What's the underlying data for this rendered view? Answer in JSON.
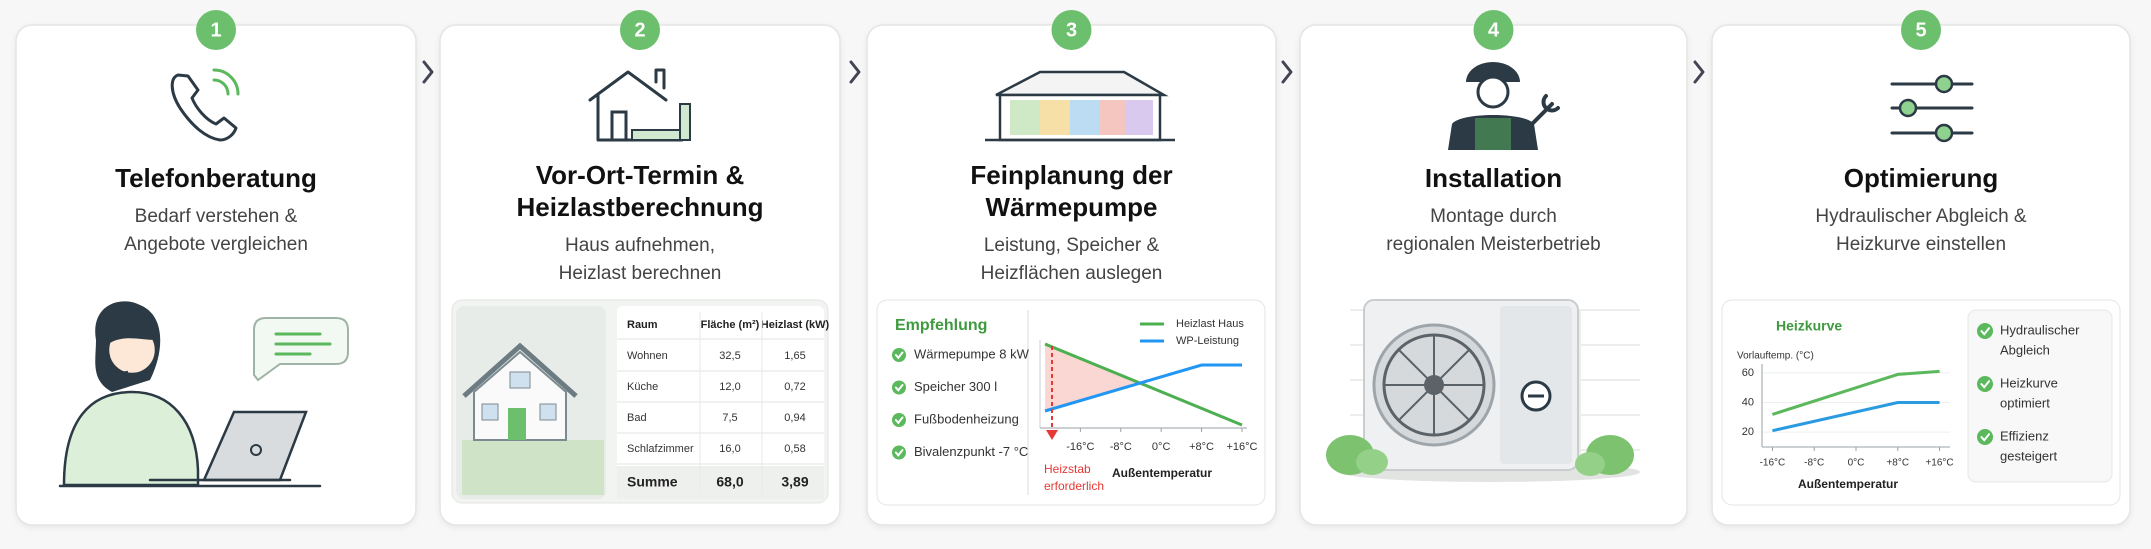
{
  "steps": [
    {
      "number": "1",
      "title": [
        "Telefonberatung"
      ],
      "subtitle": [
        "Bedarf verstehen &",
        "Angebote vergleichen"
      ]
    },
    {
      "number": "2",
      "title": [
        "Vor-Ort-Termin &",
        "Heizlastberechnung"
      ],
      "subtitle": [
        "Haus aufnehmen,",
        "Heizlast berechnen"
      ]
    },
    {
      "number": "3",
      "title": [
        "Feinplanung der",
        "Wärmepumpe"
      ],
      "subtitle": [
        "Leistung, Speicher &",
        "Heizflächen auslegen"
      ]
    },
    {
      "number": "4",
      "title": [
        "Installation"
      ],
      "subtitle": [
        "Montage durch",
        "regionalen Meisterbetrieb"
      ]
    },
    {
      "number": "5",
      "title": [
        "Optimierung"
      ],
      "subtitle": [
        "Hydraulischer Abgleich &",
        "Heizkurve einstellen"
      ]
    }
  ],
  "heat_load_table": {
    "header": [
      "Raum",
      "Fläche (m²)",
      "Heizlast (kW)"
    ],
    "rows": [
      [
        "Wohnen",
        "32,5",
        "1,65"
      ],
      [
        "Küche",
        "12,0",
        "0,72"
      ],
      [
        "Bad",
        "7,5",
        "0,94"
      ],
      [
        "Schlafzimmer",
        "16,0",
        "0,58"
      ]
    ],
    "total": [
      "Summe",
      "68,0",
      "3,89"
    ]
  },
  "planning": {
    "heading": "Empfehlung",
    "items": [
      "Wärmepumpe 8 kW",
      "Speicher 300 l",
      "Fußbodenheizung",
      "Bivalenzpunkt -7 °C"
    ],
    "chart": {
      "type": "line",
      "series": [
        {
          "name": "Heizlast Haus",
          "color": "#4caf50",
          "x": [
            -23,
            16
          ],
          "values": [
            8.4,
            0.3
          ]
        },
        {
          "name": "WP-Leistung",
          "color": "#2196f3",
          "x": [
            -23,
            8,
            16
          ],
          "values": [
            1.7,
            6.3,
            6.3
          ]
        }
      ],
      "xlim": [
        -24,
        17
      ],
      "xticks": [
        {
          "value": -16,
          "label": "-16°C"
        },
        {
          "value": -8,
          "label": "-8°C"
        },
        {
          "value": 0,
          "label": "0°C"
        },
        {
          "value": 8,
          "label": "+8°C"
        },
        {
          "value": 16,
          "label": "+16°C"
        }
      ],
      "xlabel": "Außentemperatur",
      "annotation": [
        "Heizstab",
        "erforderlich"
      ]
    }
  },
  "optimization": {
    "chart": {
      "type": "line",
      "title": "Heizkurve",
      "ylabel": "Vorlauftemp. (°C)",
      "series": [
        {
          "color": "#5cb85c",
          "x": [
            -16,
            8,
            16
          ],
          "values": [
            32,
            59,
            61
          ]
        },
        {
          "color": "#2a9be0",
          "x": [
            -16,
            8,
            16
          ],
          "values": [
            21,
            40,
            40
          ]
        }
      ],
      "xlim": [
        -18,
        18
      ],
      "ylim": [
        10,
        66
      ],
      "yticks": [
        20,
        40,
        60
      ],
      "xticks": [
        {
          "value": -16,
          "label": "-16°C"
        },
        {
          "value": -8,
          "label": "-8°C"
        },
        {
          "value": 0,
          "label": "0°C"
        },
        {
          "value": 8,
          "label": "+8°C"
        },
        {
          "value": 16,
          "label": "+16°C"
        }
      ],
      "xlabel": "Außentemperatur"
    },
    "items": [
      [
        "Hydraulischer",
        "Abgleich"
      ],
      [
        "Heizkurve",
        "optimiert"
      ],
      [
        "Effizienz",
        "gesteigert"
      ]
    ]
  }
}
